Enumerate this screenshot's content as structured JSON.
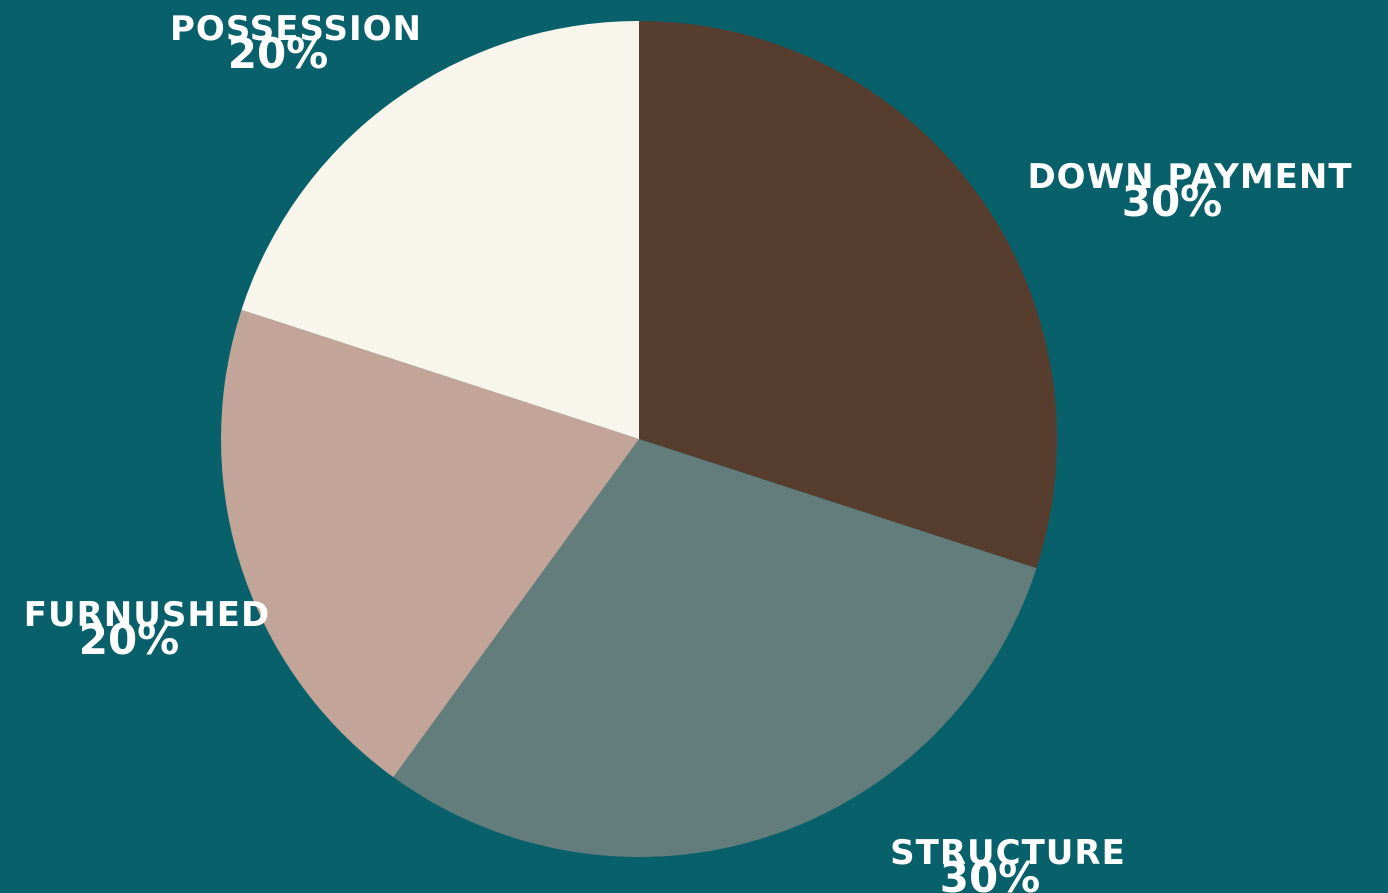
{
  "chart_data": {
    "type": "pie",
    "categories": [
      "DOWN PAYMENT",
      "STRUCTURE",
      "FURNUSHED",
      "POSSESSION"
    ],
    "values": [
      30,
      30,
      20,
      20
    ],
    "value_labels": [
      "30%",
      "30%",
      "20%",
      "20%"
    ],
    "colors": [
      "#573D2E",
      "#637C7C",
      "#C2A598",
      "#F8F6EC"
    ],
    "background": "#08606A",
    "start": "12 o'clock",
    "direction": "clockwise",
    "title": "",
    "legend": "none"
  }
}
